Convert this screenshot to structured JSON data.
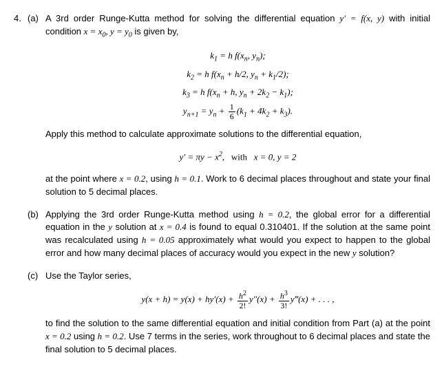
{
  "problem_number": "4.",
  "parts": {
    "a": {
      "label": "(a)",
      "intro_html": "A 3rd order Runge-Kutta method for solving the differential equation <span class='eq-inline'>y′ = f(x, y)</span> with initial condition <span class='eq-inline'>x = x<sub>0</sub>, y = y<sub>0</sub></span> is given by,",
      "eq1": "k<sub>1</sub> = h f(x<sub>n</sub>, y<sub>n</sub>);",
      "eq2": "k<sub>2</sub> = h f(x<sub>n</sub> + h/2, y<sub>n</sub> + k<sub>1</sub>/2);",
      "eq3": "k<sub>3</sub> = h f(x<sub>n</sub> + h, y<sub>n</sub> + 2k<sub>2</sub> − k<sub>1</sub>);",
      "eq4_html": "y<sub>n+1</sub> = y<sub>n</sub> + <span class='frac'><span class='fn upright'>1</span><span class='fd upright'>6</span></span>(k<sub>1</sub> + 4k<sub>2</sub> + k<sub>3</sub>).",
      "apply_text": "Apply this method to calculate approximate solutions to the differential equation,",
      "de_html": "y′ = πy − x<sup>2</sup>,&nbsp;&nbsp;&nbsp;<span class='upright'>with</span>&nbsp;&nbsp;&nbsp;x = 0, y = 2",
      "closing_html": "at the point where <span class='eq-inline'>x = 0.2</span>, using <span class='eq-inline'>h = 0.1</span>. Work to 6 decimal places throughout and state your final solution to 5 decimal places."
    },
    "b": {
      "label": "(b)",
      "text_html": "Applying the 3rd order Runge-Kutta method using <span class='eq-inline'>h = 0.2</span>, the global error for a differential equation in the <span class='eq-inline'>y</span> solution at <span class='eq-inline'>x = 0.4</span> is found to equal 0.310401. If the solution at the same point was recalculated using <span class='eq-inline'>h = 0.05</span> approximately what would you expect to happen to the global error and how many decimal places of accuracy would you expect in the new <span class='eq-inline'>y</span> solution?"
    },
    "c": {
      "label": "(c)",
      "intro": "Use the Taylor series,",
      "taylor_html": "y(x + h) = y(x) + hy′(x) + <span class='frac'><span class='fn'>h<sup><span class=\"upright\">2</span></sup></span><span class='fd upright'>2!</span></span>y″(x) + <span class='frac'><span class='fn'>h<sup><span class=\"upright\">3</span></sup></span><span class='fd upright'>3!</span></span>y‴(x) + . . . ,",
      "closing_html": "to find the solution to the same differential equation and initial condition from Part (a) at the point <span class='eq-inline'>x = 0.2</span> using <span class='eq-inline'>h = 0.2</span>. Use 7 terms in the series, work throughout to 6 decimal places and state the final solution to 5 decimal places."
    }
  }
}
